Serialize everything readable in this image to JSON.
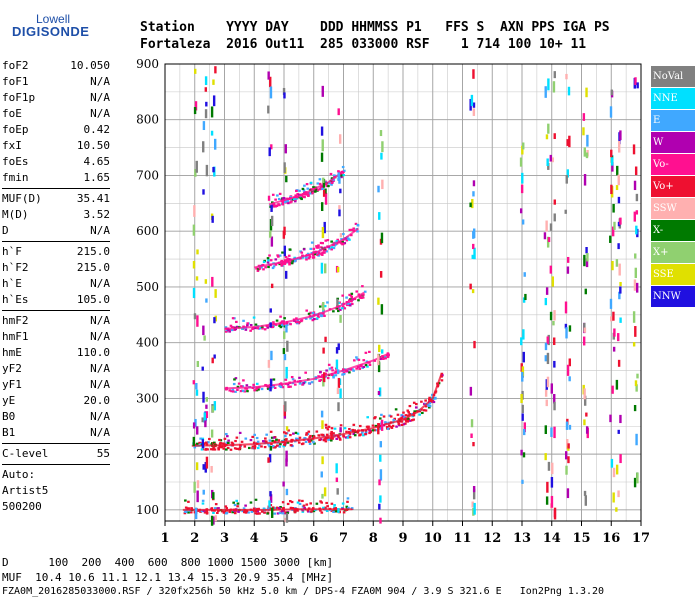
{
  "logo": {
    "top": "Lowell",
    "main": "DIGISONDE"
  },
  "header": {
    "line1": "Station    YYYY DAY    DDD HHMMSS P1   FFS S  AXN PPS IGA PS",
    "line2": "Fortaleza  2016 Out11  285 033000 RSF    1 714 100 10+ 11"
  },
  "params": {
    "group1": [
      {
        "label": "foF2",
        "value": "10.050"
      },
      {
        "label": "foF1",
        "value": "N/A"
      },
      {
        "label": "foF1p",
        "value": "N/A"
      },
      {
        "label": "foE",
        "value": "N/A"
      },
      {
        "label": "foEp",
        "value": "0.42"
      },
      {
        "label": "fxI",
        "value": "10.50"
      },
      {
        "label": "foEs",
        "value": "4.65"
      },
      {
        "label": "fmin",
        "value": "1.65"
      }
    ],
    "group2": [
      {
        "label": "MUF(D)",
        "value": "35.41"
      },
      {
        "label": "M(D)",
        "value": "3.52"
      },
      {
        "label": "D",
        "value": "N/A"
      }
    ],
    "group3": [
      {
        "label": "h`F",
        "value": "215.0"
      },
      {
        "label": "h`F2",
        "value": "215.0"
      },
      {
        "label": "h`E",
        "value": "N/A"
      },
      {
        "label": "h`Es",
        "value": "105.0"
      }
    ],
    "group4": [
      {
        "label": "hmF2",
        "value": "N/A"
      },
      {
        "label": "hmF1",
        "value": "N/A"
      },
      {
        "label": "hmE",
        "value": "110.0"
      },
      {
        "label": "yF2",
        "value": "N/A"
      },
      {
        "label": "yF1",
        "value": "N/A"
      },
      {
        "label": "yE",
        "value": "20.0"
      },
      {
        "label": "B0",
        "value": "N/A"
      },
      {
        "label": "B1",
        "value": "N/A"
      }
    ],
    "clevel": {
      "label": "C-level",
      "value": "55"
    },
    "auto": [
      "Auto:",
      "Artist5",
      "500200"
    ]
  },
  "legend": [
    {
      "label": "NoVal",
      "color": "#808080"
    },
    {
      "label": "NNE",
      "color": "#00e0ff"
    },
    {
      "label": "E",
      "color": "#40a8ff"
    },
    {
      "label": "W",
      "color": "#b000b0"
    },
    {
      "label": "Vo-",
      "color": "#ff1090"
    },
    {
      "label": "Vo+",
      "color": "#ee1030"
    },
    {
      "label": "SSW",
      "color": "#ffb0b0"
    },
    {
      "label": "X-",
      "color": "#007a00"
    },
    {
      "label": "X+",
      "color": "#90d070"
    },
    {
      "label": "SSE",
      "color": "#e0e000"
    },
    {
      "label": "NNW",
      "color": "#2010e0"
    }
  ],
  "bottom": {
    "dist": "D      100  200  400  600  800 1000 1500 3000 [km]",
    "muf": "MUF  10.4 10.6 11.1 12.1 13.4 15.3 20.9 35.4 [MHz]",
    "footer": "FZA0M_2016285033000.RSF / 320fx256h 50 kHz 5.0 km / DPS-4 FZA0M 904 / 3.9 S 321.6 E   Ion2Png 1.3.20"
  },
  "chart_data": {
    "type": "scatter",
    "title": "",
    "xlabel": "",
    "ylabel": "",
    "xlim": [
      1,
      17
    ],
    "ylim": [
      80,
      900
    ],
    "x_ticks": [
      1,
      2,
      3,
      4,
      5,
      6,
      7,
      8,
      9,
      10,
      11,
      12,
      13,
      14,
      15,
      16,
      17
    ],
    "y_ticks": [
      100,
      200,
      300,
      400,
      500,
      600,
      700,
      800,
      900
    ],
    "grid": true,
    "traces": [
      {
        "name": "Es",
        "color": "#ee1030",
        "x": [
          1.6,
          2.5,
          3.5,
          4.5,
          5.5,
          6.5,
          7.3
        ],
        "y": [
          100,
          100,
          100,
          100,
          101,
          101,
          101
        ]
      },
      {
        "name": "F 1st hop",
        "color": "#ee1030",
        "x": [
          1.9,
          3,
          4,
          5,
          6,
          7,
          8,
          9,
          9.5,
          10,
          10.3
        ],
        "y": [
          215,
          216,
          218,
          222,
          228,
          236,
          247,
          262,
          276,
          300,
          345
        ]
      },
      {
        "name": "F 2nd hop",
        "color": "#ff1090",
        "x": [
          3,
          4,
          5,
          6,
          7,
          8,
          8.5
        ],
        "y": [
          318,
          320,
          326,
          335,
          350,
          368,
          380
        ]
      },
      {
        "name": "F 3rd hop",
        "color": "#ff1090",
        "x": [
          3,
          4,
          5,
          6,
          7,
          7.7
        ],
        "y": [
          425,
          428,
          436,
          448,
          468,
          490
        ]
      },
      {
        "name": "F 4th hop",
        "color": "#ff1090",
        "x": [
          4,
          5,
          6,
          7,
          7.5
        ],
        "y": [
          535,
          545,
          560,
          585,
          605
        ]
      },
      {
        "name": "F 5th hop",
        "color": "#ff1090",
        "x": [
          4.5,
          5.5,
          6.5,
          7
        ],
        "y": [
          648,
          663,
          688,
          708
        ]
      }
    ]
  }
}
